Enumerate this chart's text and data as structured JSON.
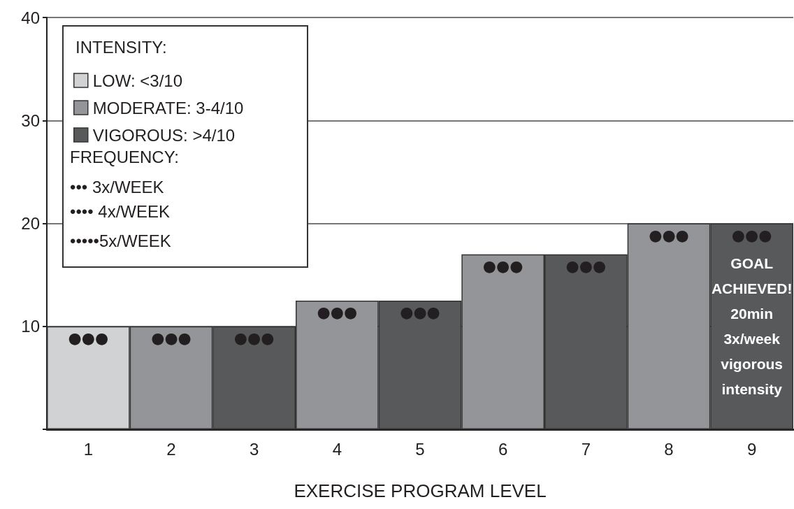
{
  "chart_data": {
    "type": "bar",
    "xlabel": "EXERCISE PROGRAM LEVEL",
    "legend_title": "INTENSITY:",
    "categories": [
      "1",
      "2",
      "3",
      "4",
      "5",
      "6",
      "7",
      "8",
      "9"
    ],
    "ylim": [
      0,
      40
    ],
    "yticks": [
      {
        "value": 0,
        "label": null
      },
      10,
      20,
      30,
      40
    ],
    "grid": "y",
    "legend": "top left",
    "series": [
      {
        "name": "LOW: <3/10",
        "color": "#d1d2d4",
        "values": [
          10,
          null,
          null,
          null,
          null,
          null,
          null,
          null,
          null
        ],
        "value_labels": [
          "●●●",
          null,
          null,
          null,
          null,
          null,
          null,
          null,
          null
        ]
      },
      {
        "name": "MODERATE: 3-4/10",
        "color": "#939598",
        "values": [
          null,
          10,
          null,
          12.5,
          null,
          17,
          null,
          20,
          null
        ],
        "value_labels": [
          null,
          "●●●",
          null,
          "●●●",
          null,
          "●●●",
          null,
          "●●●",
          null
        ]
      },
      {
        "name": "VIGOROUS: >4/10",
        "color": "#58595b",
        "values": [
          null,
          null,
          10,
          null,
          12.5,
          null,
          17,
          null,
          20
        ],
        "value_labels": [
          null,
          null,
          "●●●",
          null,
          "●●●",
          null,
          "●●●",
          null,
          "●●●"
        ]
      }
    ],
    "annotations": [
      "FREQUENCY:",
      "••• 3x/WEEK",
      "•••• 4x/WEEK",
      "•••••5x/WEEK",
      "GOAL\nACHIEVED!\n20min\n3x/week\nvigorous\nintensity"
    ]
  }
}
